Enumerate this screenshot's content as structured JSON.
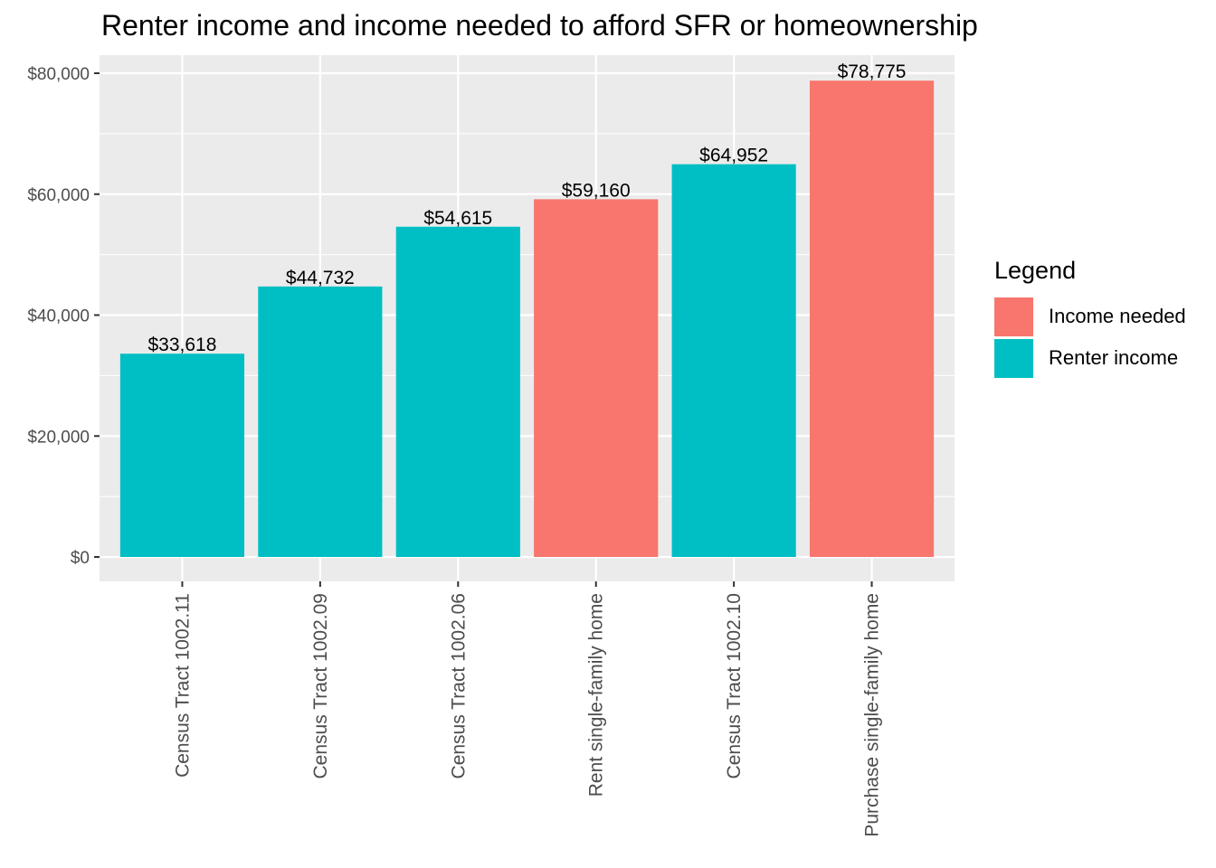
{
  "chart_data": {
    "type": "bar",
    "title": "Renter income and income needed to afford SFR or homeownership",
    "xlabel": "",
    "ylabel": "",
    "categories": [
      "Census Tract 1002.11",
      "Census Tract 1002.09",
      "Census Tract 1002.06",
      "Rent single-family home",
      "Census Tract 1002.10",
      "Purchase single-family home"
    ],
    "values": [
      33618,
      44732,
      54615,
      59160,
      64952,
      78775
    ],
    "value_labels": [
      "$33,618",
      "$44,732",
      "$54,615",
      "$59,160",
      "$64,952",
      "$78,775"
    ],
    "groups": [
      "Renter income",
      "Renter income",
      "Renter income",
      "Income needed",
      "Renter income",
      "Income needed"
    ],
    "ylim": [
      0,
      80000
    ],
    "yticks": [
      0,
      20000,
      40000,
      60000,
      80000
    ],
    "ytick_labels": [
      "$0",
      "$20,000",
      "$40,000",
      "$60,000",
      "$80,000"
    ],
    "grid": true,
    "legend": {
      "title": "Legend",
      "placement": "right",
      "entries": [
        {
          "name": "Income needed",
          "color": "#F8766D"
        },
        {
          "name": "Renter income",
          "color": "#00BFC4"
        }
      ]
    },
    "colors": {
      "Income needed": "#F8766D",
      "Renter income": "#00BFC4",
      "panel_background": "#EBEBEB",
      "grid": "#FFFFFF"
    }
  }
}
